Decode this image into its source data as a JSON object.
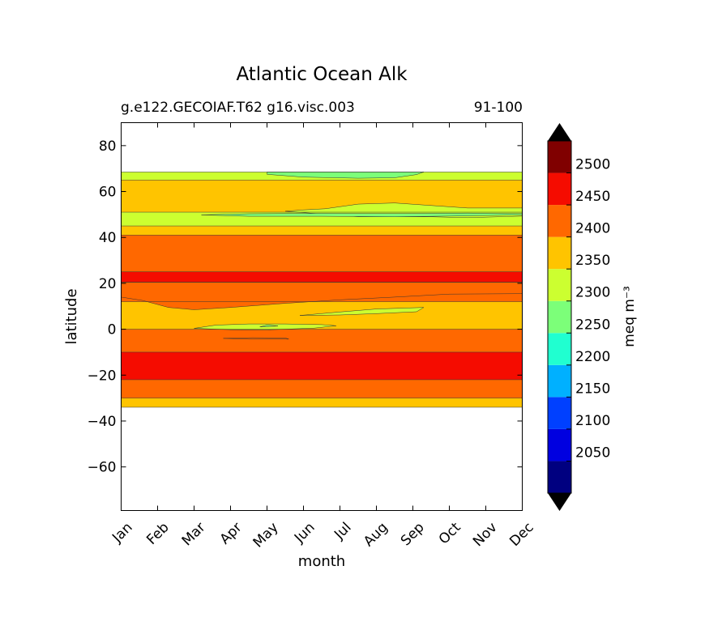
{
  "chart_data": {
    "type": "heatmap",
    "title": "Atlantic Ocean Alk",
    "subtitle_left": "g.e122.GECOIAF.T62 g16.visc.003",
    "subtitle_right": "91-100",
    "xlabel": "month",
    "ylabel": "latitude",
    "x_ticks": [
      "Jan",
      "Feb",
      "Mar",
      "Apr",
      "May",
      "Jun",
      "Jul",
      "Aug",
      "Sep",
      "Oct",
      "Nov",
      "Dec"
    ],
    "x_range": [
      0,
      11
    ],
    "y_ticks": [
      80,
      60,
      40,
      20,
      0,
      -20,
      -40,
      -60
    ],
    "y_tick_labels": [
      "80",
      "60",
      "40",
      "20",
      "0",
      "−20",
      "−40",
      "−60"
    ],
    "ylim": [
      -79,
      90
    ],
    "colorbar": {
      "label": "meq m⁻³",
      "levels": [
        2000,
        2050,
        2100,
        2150,
        2200,
        2250,
        2300,
        2350,
        2400,
        2450,
        2500,
        2550
      ],
      "tick_values": [
        2050,
        2100,
        2150,
        2200,
        2250,
        2300,
        2350,
        2400,
        2450,
        2500
      ],
      "colors": [
        "#000080",
        "#0000e0",
        "#0040ff",
        "#00b0ff",
        "#20ffd0",
        "#7cff79",
        "#ccff30",
        "#ffc400",
        "#ff6800",
        "#f50c00",
        "#800000"
      ],
      "under_color": "#000000",
      "over_color": "#000000"
    },
    "bands": [
      {
        "lat_bottom": 65,
        "lat_top": 68.5,
        "value": 2325,
        "label": "2300-2350"
      },
      {
        "lat_bottom": 51,
        "lat_top": 65,
        "value": 2375,
        "label": "2350-2400"
      },
      {
        "lat_bottom": 45,
        "lat_top": 51,
        "value": 2325,
        "label": "2300-2350"
      },
      {
        "lat_bottom": 41,
        "lat_top": 45,
        "value": 2375,
        "label": "2350-2400"
      },
      {
        "lat_bottom": 25,
        "lat_top": 41,
        "value": 2425,
        "label": "2400-2450"
      },
      {
        "lat_bottom": 20.5,
        "lat_top": 25,
        "value": 2475,
        "label": "2450-2500"
      },
      {
        "lat_bottom": 12,
        "lat_top": 20.5,
        "value": 2425,
        "label": "2400-2450"
      },
      {
        "lat_bottom": 0,
        "lat_top": 12,
        "value": 2375,
        "label": "2350-2400"
      },
      {
        "lat_bottom": -10,
        "lat_top": 0,
        "value": 2425,
        "label": "2400-2450"
      },
      {
        "lat_bottom": -22,
        "lat_top": -10,
        "value": 2475,
        "label": "2450-2500"
      },
      {
        "lat_bottom": -30,
        "lat_top": -22,
        "value": 2425,
        "label": "2400-2450"
      },
      {
        "lat_bottom": -34,
        "lat_top": -30,
        "value": 2375,
        "label": "2350-2400"
      }
    ],
    "patches": [
      {
        "value": 2275,
        "label": "2250-2300",
        "points": [
          [
            4.0,
            67.5
          ],
          [
            5.0,
            66.3
          ],
          [
            6.5,
            65.8
          ],
          [
            7.5,
            66.0
          ],
          [
            8.1,
            67.4
          ],
          [
            8.3,
            68.5
          ],
          [
            4.0,
            68.5
          ]
        ]
      },
      {
        "value": 2325,
        "label": "2300-2350",
        "points": [
          [
            5.6,
            52.5
          ],
          [
            6.5,
            54.5
          ],
          [
            7.5,
            55.0
          ],
          [
            8.6,
            53.8
          ],
          [
            9.5,
            52.8
          ],
          [
            11,
            52.8
          ],
          [
            11,
            49.3
          ],
          [
            9.5,
            48.6
          ],
          [
            8.5,
            49.0
          ],
          [
            6.5,
            49.0
          ],
          [
            5.5,
            50.2
          ],
          [
            4.5,
            51.4
          ],
          [
            5.0,
            52.0
          ]
        ]
      },
      {
        "value": 2275,
        "label": "2250-2300",
        "points": [
          [
            2.2,
            49.8
          ],
          [
            3.5,
            49.2
          ],
          [
            5.5,
            49.2
          ],
          [
            7.5,
            49.0
          ],
          [
            9.5,
            49.4
          ],
          [
            11,
            49.8
          ],
          [
            11,
            50.4
          ],
          [
            9.5,
            50.6
          ],
          [
            7.5,
            50.4
          ],
          [
            5.5,
            50.5
          ],
          [
            3.5,
            50.3
          ]
        ]
      },
      {
        "value": 2425,
        "label": "2400-2450",
        "points": [
          [
            0,
            14
          ],
          [
            0.6,
            12.5
          ],
          [
            1.3,
            9.5
          ],
          [
            2.0,
            8.5
          ],
          [
            3.0,
            9.5
          ],
          [
            4.5,
            11.3
          ],
          [
            6.0,
            12.8
          ],
          [
            7.5,
            14.0
          ],
          [
            9.0,
            15.3
          ],
          [
            11,
            15.5
          ],
          [
            11,
            20.5
          ],
          [
            0,
            20.5
          ]
        ]
      },
      {
        "value": 2325,
        "label": "2300-2350",
        "points": [
          [
            4.9,
            6.0
          ],
          [
            6.0,
            7.5
          ],
          [
            7.0,
            8.8
          ],
          [
            8.3,
            9.5
          ],
          [
            8.1,
            7.6
          ],
          [
            7.0,
            6.8
          ],
          [
            6.0,
            6.2
          ]
        ]
      },
      {
        "value": 2325,
        "label": "2300-2350",
        "points": [
          [
            2.0,
            0.4
          ],
          [
            2.6,
            1.8
          ],
          [
            3.5,
            2.3
          ],
          [
            4.5,
            2.3
          ],
          [
            5.5,
            2.0
          ],
          [
            5.9,
            1.5
          ],
          [
            5.3,
            0.5
          ],
          [
            4.0,
            -0.3
          ],
          [
            3.0,
            -0.2
          ]
        ]
      },
      {
        "value": 2275,
        "label": "2250-2300",
        "points": [
          [
            3.8,
            1.0
          ],
          [
            4.0,
            1.8
          ],
          [
            4.3,
            1.4
          ]
        ]
      },
      {
        "value": 2425,
        "label": "2400-2450",
        "points": [
          [
            2.8,
            -4.0
          ],
          [
            3.5,
            -4.3
          ],
          [
            4.6,
            -4.3
          ],
          [
            4.5,
            -3.8
          ],
          [
            3.6,
            -3.7
          ]
        ]
      }
    ]
  }
}
